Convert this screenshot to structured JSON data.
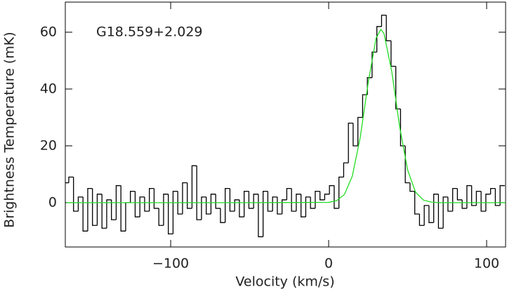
{
  "chart_data": {
    "type": "step",
    "annotation": "G18.559+2.029",
    "xlabel": "Velocity (km/s)",
    "ylabel": "Brightness Temperature (mK)",
    "xlim": [
      -166.7,
      112
    ],
    "ylim": [
      -15.6,
      70.6
    ],
    "xticks": [
      {
        "value": -100,
        "label": "−100"
      },
      0,
      100
    ],
    "yticks": [
      0,
      20,
      40,
      60
    ],
    "series": [
      {
        "color": "#000000",
        "x": [
          -166,
          -163,
          -160,
          -157,
          -154,
          -151,
          -148,
          -145,
          -142,
          -139,
          -136,
          -133,
          -130,
          -127,
          -124,
          -121,
          -118,
          -115,
          -112,
          -109,
          -106,
          -103,
          -100,
          -97,
          -94,
          -91,
          -88,
          -85,
          -82,
          -79,
          -76,
          -73,
          -70,
          -67,
          -64,
          -61,
          -58,
          -55,
          -52,
          -49,
          -46,
          -43,
          -40,
          -37,
          -34,
          -31,
          -28,
          -25,
          -22,
          -19,
          -16,
          -13,
          -10,
          -7,
          -4,
          -1,
          2,
          5,
          8,
          11,
          14,
          17,
          20,
          23,
          26,
          29,
          32,
          35,
          38,
          41,
          44,
          47,
          50,
          53,
          56,
          59,
          62,
          65,
          68,
          71,
          74,
          77,
          80,
          83,
          86,
          89,
          92,
          95,
          98,
          101,
          104,
          107,
          110
        ],
        "values": [
          7,
          9,
          -3,
          2,
          -10,
          5,
          -8,
          3,
          -9,
          1,
          -6,
          6,
          -10,
          0,
          4,
          -5,
          2,
          -3,
          5,
          -2,
          -8,
          3,
          -11,
          4,
          -4,
          7,
          -2,
          13,
          -6,
          2,
          -4,
          3,
          -2,
          -7,
          5,
          -3,
          1,
          -5,
          4,
          -2,
          3,
          -12,
          4,
          -3,
          2,
          -4,
          1,
          5,
          -3,
          3,
          -5,
          2,
          -2,
          4,
          1,
          3,
          6,
          -2,
          9,
          14,
          28,
          20,
          30,
          38,
          44,
          53,
          62,
          66,
          57,
          48,
          33,
          20,
          7,
          4,
          -4,
          -8,
          -1,
          -7,
          3,
          -9,
          2,
          -3,
          5,
          1,
          -2,
          6,
          -1,
          4,
          -3,
          3,
          5,
          -1,
          6
        ]
      },
      {
        "color": "#22dd22",
        "x": [
          -166,
          -100,
          -50,
          0,
          5,
          10,
          15,
          20,
          25,
          30,
          33,
          35,
          40,
          45,
          50,
          55,
          60,
          65,
          70,
          112
        ],
        "values": [
          0,
          0,
          0,
          0.1,
          0.7,
          2.9,
          9.4,
          23,
          42.1,
          57.9,
          61,
          59.6,
          46,
          26.5,
          11.5,
          3.7,
          0.9,
          0.2,
          0,
          0
        ]
      }
    ]
  }
}
